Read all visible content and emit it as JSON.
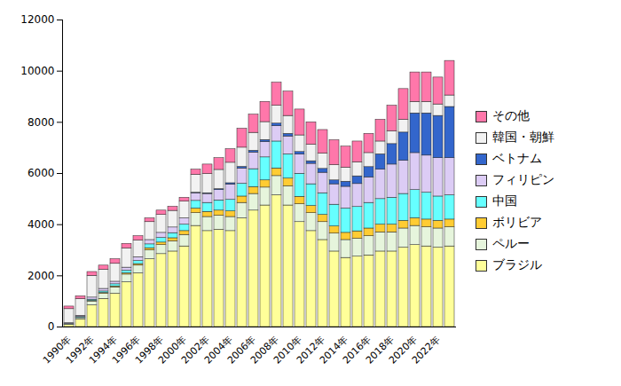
{
  "chart_data": {
    "type": "bar",
    "stacked": true,
    "grid": false,
    "legend": "right",
    "categories": [
      "1990年",
      null,
      "1992年",
      null,
      "1994年",
      null,
      "1996年",
      null,
      "1998年",
      null,
      "2000年",
      null,
      "2002年",
      null,
      "2004年",
      null,
      "2006年",
      null,
      "2008年",
      null,
      "2010年",
      null,
      "2012年",
      null,
      "2014年",
      null,
      "2016年",
      null,
      "2018年",
      null,
      "2020年",
      null,
      "2022年",
      null
    ],
    "ylim": [
      0,
      12000
    ],
    "yticks": [
      0,
      2000,
      4000,
      6000,
      8000,
      10000,
      12000
    ],
    "series": [
      {
        "name": "ブラジル",
        "color": "#ffff99",
        "values": [
          80,
          300,
          850,
          1100,
          1300,
          1750,
          2100,
          2650,
          2850,
          2950,
          3150,
          3950,
          3750,
          3800,
          3750,
          4250,
          4550,
          4750,
          5150,
          4750,
          4100,
          3750,
          3400,
          2950,
          2700,
          2750,
          2800,
          2950,
          2950,
          3100,
          3200,
          3150,
          3100,
          3150
        ]
      },
      {
        "name": "ペルー",
        "color": "#e6f5dc",
        "values": [
          20,
          50,
          150,
          200,
          250,
          300,
          300,
          350,
          350,
          400,
          450,
          500,
          550,
          550,
          550,
          600,
          650,
          700,
          750,
          750,
          700,
          700,
          700,
          700,
          700,
          700,
          750,
          750,
          750,
          750,
          750,
          750,
          750,
          750
        ]
      },
      {
        "name": "ボリビア",
        "color": "#ffcc33",
        "values": [
          0,
          10,
          20,
          30,
          40,
          50,
          60,
          80,
          100,
          120,
          150,
          180,
          200,
          200,
          220,
          250,
          270,
          280,
          300,
          300,
          290,
          280,
          280,
          280,
          280,
          290,
          300,
          300,
          300,
          300,
          300,
          300,
          300,
          300
        ]
      },
      {
        "name": "中国",
        "color": "#66ffff",
        "values": [
          20,
          30,
          50,
          60,
          80,
          100,
          120,
          150,
          180,
          200,
          250,
          300,
          350,
          400,
          450,
          500,
          700,
          900,
          1050,
          950,
          900,
          850,
          850,
          850,
          950,
          950,
          1000,
          1000,
          1050,
          1050,
          1100,
          1050,
          950,
          950
        ]
      },
      {
        "name": "フィリピン",
        "color": "#dcccf5",
        "values": [
          30,
          50,
          80,
          100,
          100,
          120,
          150,
          170,
          200,
          220,
          250,
          300,
          350,
          400,
          600,
          600,
          650,
          600,
          600,
          700,
          750,
          800,
          800,
          800,
          850,
          900,
          1000,
          1150,
          1300,
          1300,
          1450,
          1450,
          1500,
          1450
        ]
      },
      {
        "name": "ベトナム",
        "color": "#3366cc",
        "values": [
          0,
          0,
          0,
          0,
          0,
          0,
          0,
          0,
          0,
          0,
          0,
          20,
          30,
          40,
          50,
          60,
          70,
          80,
          100,
          100,
          100,
          100,
          150,
          150,
          200,
          300,
          400,
          600,
          800,
          1100,
          1550,
          1650,
          1650,
          2000
        ]
      },
      {
        "name": "韓国・朝鮮",
        "color": "#f2f2f2",
        "values": [
          550,
          650,
          850,
          750,
          700,
          750,
          650,
          700,
          700,
          650,
          650,
          700,
          750,
          750,
          800,
          750,
          700,
          700,
          700,
          700,
          650,
          650,
          600,
          600,
          550,
          550,
          550,
          500,
          500,
          500,
          450,
          450,
          450,
          450
        ]
      },
      {
        "name": "その他",
        "color": "#ff77aa",
        "values": [
          100,
          110,
          150,
          160,
          180,
          180,
          170,
          150,
          170,
          160,
          150,
          200,
          370,
          460,
          530,
          740,
          710,
          790,
          900,
          950,
          1010,
          870,
          920,
          970,
          820,
          810,
          750,
          850,
          1000,
          1200,
          1150,
          1150,
          1050,
          1350
        ]
      }
    ]
  }
}
